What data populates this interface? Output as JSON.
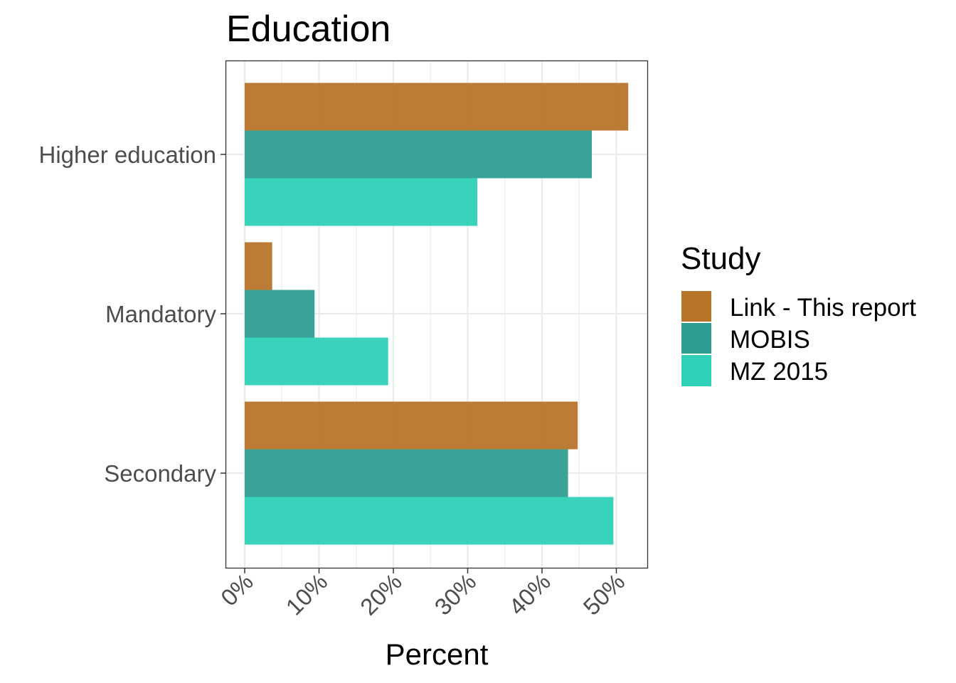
{
  "chart_data": {
    "type": "bar",
    "orientation": "horizontal",
    "title": "Education",
    "xlabel": "Percent",
    "ylabel": "",
    "categories": [
      "Higher education",
      "Mandatory",
      "Secondary"
    ],
    "x_ticks": [
      "0%",
      "10%",
      "20%",
      "30%",
      "40%",
      "50%"
    ],
    "xlim": [
      0,
      0.54
    ],
    "grid": true,
    "legend": {
      "title": "Study",
      "position": "right"
    },
    "series": [
      {
        "name": "Link - This report",
        "color": "#B8752A",
        "values": [
          0.516,
          0.037,
          0.448
        ]
      },
      {
        "name": "MOBIS",
        "color": "#2E9E92",
        "values": [
          0.467,
          0.094,
          0.435
        ]
      },
      {
        "name": "MZ 2015",
        "color": "#2ED1B7",
        "values": [
          0.313,
          0.193,
          0.496
        ]
      }
    ]
  }
}
